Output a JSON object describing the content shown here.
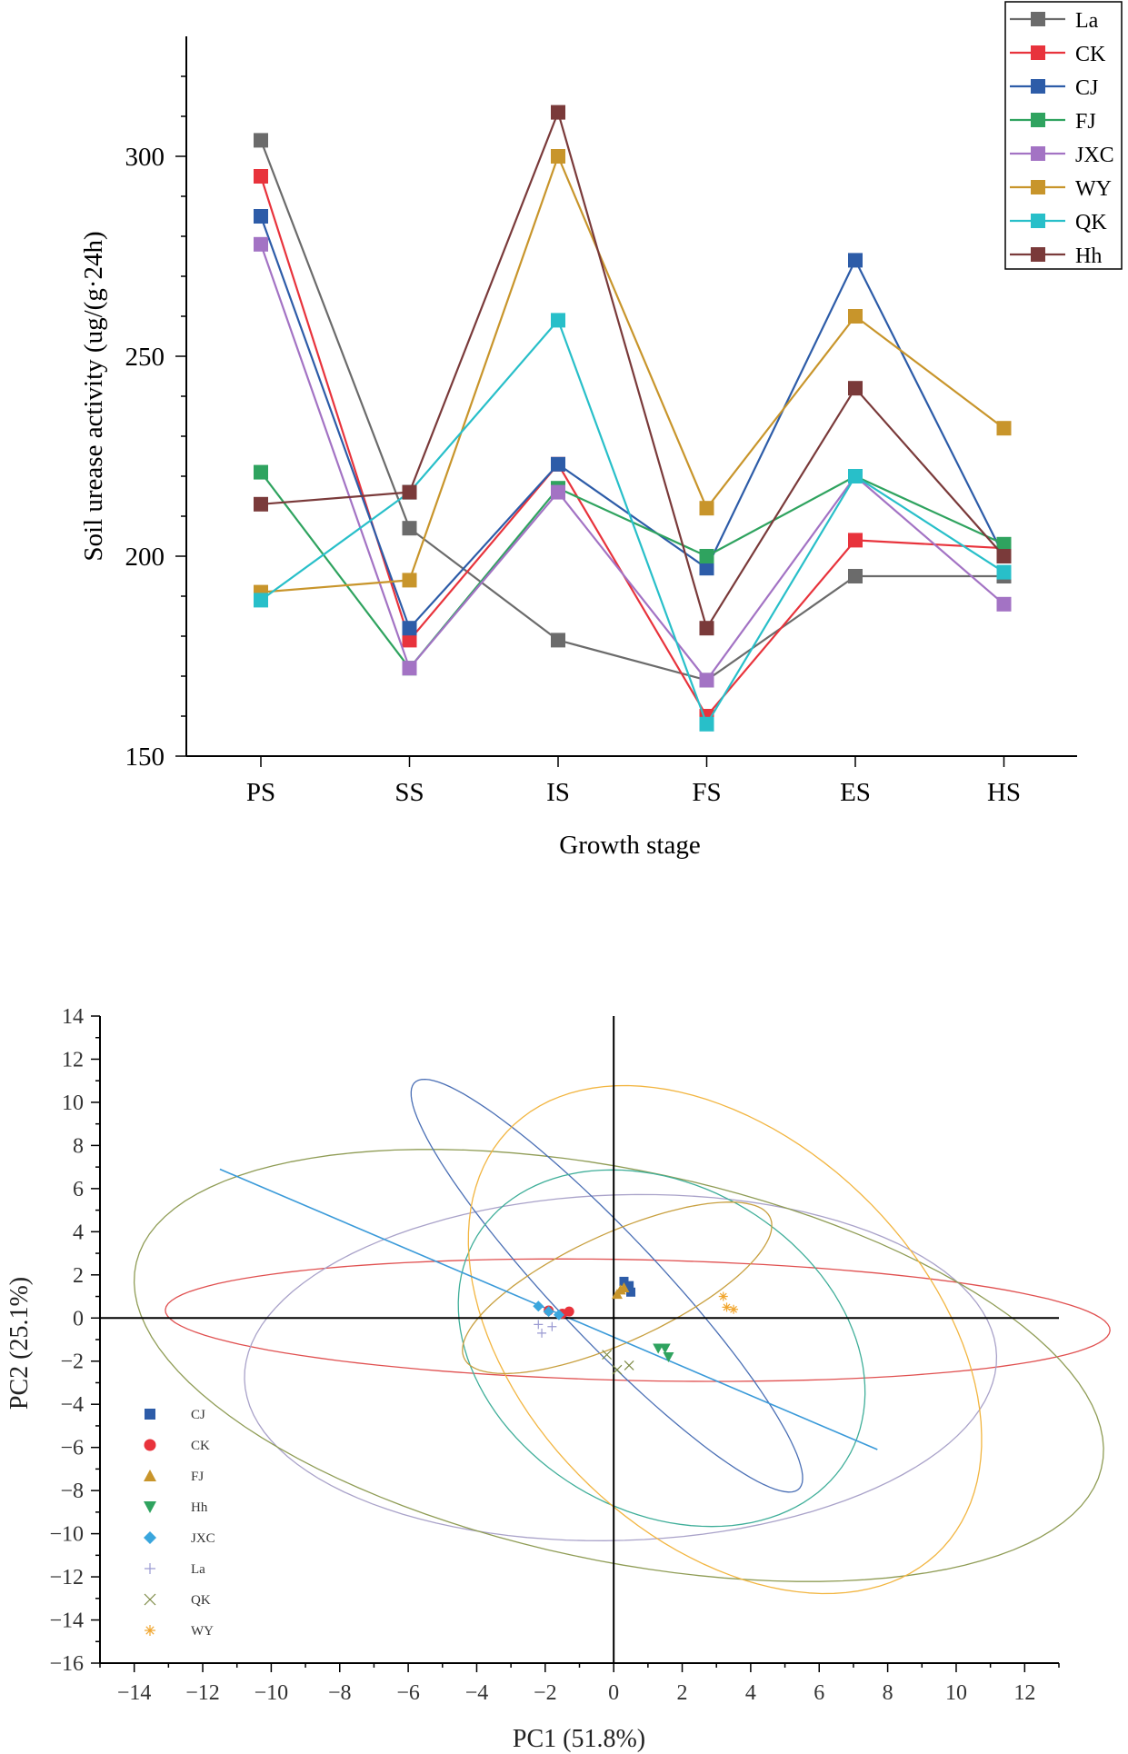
{
  "chart_data": [
    {
      "type": "line",
      "title": "",
      "xlabel": "Growth stage",
      "ylabel": "Soil urease activity (ug/(g·24h)",
      "ylim": [
        150,
        330
      ],
      "yticks": [
        150,
        200,
        250,
        300
      ],
      "categories": [
        "PS",
        "SS",
        "IS",
        "FS",
        "ES",
        "HS"
      ],
      "legend_position": "top-right",
      "series": [
        {
          "name": "La",
          "color": "#6b6b6b",
          "values": [
            304,
            207,
            179,
            169,
            195,
            195
          ]
        },
        {
          "name": "CK",
          "color": "#e8333c",
          "values": [
            295,
            179,
            223,
            160,
            204,
            202
          ]
        },
        {
          "name": "CJ",
          "color": "#2d5ca8",
          "values": [
            285,
            182,
            223,
            197,
            274,
            200
          ]
        },
        {
          "name": "FJ",
          "color": "#2fa35f",
          "values": [
            221,
            172,
            217,
            200,
            220,
            203
          ]
        },
        {
          "name": "JXC",
          "color": "#a373c4",
          "values": [
            278,
            172,
            216,
            169,
            220,
            188
          ]
        },
        {
          "name": "WY",
          "color": "#c8952b",
          "values": [
            191,
            194,
            300,
            212,
            260,
            232
          ]
        },
        {
          "name": "QK",
          "color": "#28bfc9",
          "values": [
            189,
            216,
            259,
            158,
            220,
            196
          ]
        },
        {
          "name": "Hh",
          "color": "#7a3a3a",
          "values": [
            213,
            216,
            311,
            182,
            242,
            200
          ]
        }
      ]
    },
    {
      "type": "scatter",
      "title": "",
      "xlabel": "PC1 (51.8%)",
      "ylabel": "PC2 (25.1%)",
      "xlim": [
        -15,
        13
      ],
      "ylim": [
        -16,
        14
      ],
      "xticks": [
        -14,
        -12,
        -10,
        -8,
        -6,
        -4,
        -2,
        0,
        2,
        4,
        6,
        8,
        10,
        12
      ],
      "yticks": [
        -16,
        -14,
        -12,
        -10,
        -8,
        -6,
        -4,
        -2,
        0,
        2,
        4,
        6,
        8,
        10,
        12,
        14
      ],
      "legend_position": "bottom-left",
      "series": [
        {
          "name": "CJ",
          "marker": "square",
          "color": "#2d5ca8",
          "points": [
            [
              0.3,
              1.7
            ],
            [
              0.45,
              1.5
            ],
            [
              0.5,
              1.2
            ]
          ]
        },
        {
          "name": "CK",
          "marker": "circle",
          "color": "#e8333c",
          "points": [
            [
              -1.3,
              0.3
            ],
            [
              -1.9,
              0.35
            ],
            [
              -1.5,
              0.2
            ]
          ]
        },
        {
          "name": "FJ",
          "marker": "triangle-up",
          "color": "#c8952b",
          "points": [
            [
              0.2,
              1.3
            ],
            [
              0.1,
              1.1
            ],
            [
              0.3,
              1.4
            ]
          ]
        },
        {
          "name": "Hh",
          "marker": "triangle-down",
          "color": "#2fa35f",
          "points": [
            [
              1.3,
              -1.4
            ],
            [
              1.5,
              -1.4
            ],
            [
              1.6,
              -1.8
            ]
          ]
        },
        {
          "name": "JXC",
          "marker": "diamond",
          "color": "#3aa6dd",
          "points": [
            [
              -2.2,
              0.55
            ],
            [
              -1.9,
              0.3
            ],
            [
              -1.6,
              0.15
            ]
          ]
        },
        {
          "name": "La",
          "marker": "plus",
          "color": "#9a9ad2",
          "points": [
            [
              -2.2,
              -0.3
            ],
            [
              -1.8,
              -0.4
            ],
            [
              -2.1,
              -0.7
            ]
          ]
        },
        {
          "name": "QK",
          "marker": "x",
          "color": "#7d8a45",
          "points": [
            [
              0.1,
              -2.4
            ],
            [
              0.45,
              -2.2
            ],
            [
              -0.2,
              -1.7
            ]
          ]
        },
        {
          "name": "WY",
          "marker": "asterisk",
          "color": "#f0a630",
          "points": [
            [
              3.2,
              1.0
            ],
            [
              3.3,
              0.5
            ],
            [
              3.5,
              0.4
            ]
          ]
        }
      ],
      "ellipses": [
        {
          "group": "CK",
          "color": "#e05050",
          "center": [
            0.7,
            -0.1
          ],
          "semi_axes": [
            13.8,
            2.8
          ],
          "angle_deg": -2
        },
        {
          "group": "La",
          "color": "#a9a2c9",
          "center": [
            0.2,
            -2.3
          ],
          "semi_axes": [
            11.0,
            8.0
          ],
          "angle_deg": 5
        },
        {
          "group": "QK",
          "color": "#8f9c55",
          "center": [
            0.15,
            -2.2
          ],
          "semi_axes": [
            15.0,
            8.7
          ],
          "angle_deg": -24
        },
        {
          "group": "CJ",
          "color": "#4a6fb5",
          "center": [
            -0.2,
            1.5
          ],
          "semi_axes": [
            11.0,
            1.8
          ],
          "angle_deg": -60
        },
        {
          "group": "Hh",
          "color": "#3fae99",
          "center": [
            1.4,
            -1.4
          ],
          "semi_axes": [
            8.5,
            5.6
          ],
          "angle_deg": -72
        },
        {
          "group": "WY",
          "color": "#f2b540",
          "center": [
            3.25,
            -1.0
          ],
          "semi_axes": [
            12.3,
            6.6
          ],
          "angle_deg": -70
        },
        {
          "group": "FJ",
          "color": "#c8a040",
          "center": [
            0.1,
            1.4
          ],
          "semi_axes": [
            5.6,
            2.2
          ],
          "angle_deg": 40
        }
      ],
      "regression_line": {
        "color": "#3a9ad9",
        "from": [
          -11.5,
          6.9
        ],
        "to": [
          7.7,
          -6.1
        ]
      }
    }
  ]
}
